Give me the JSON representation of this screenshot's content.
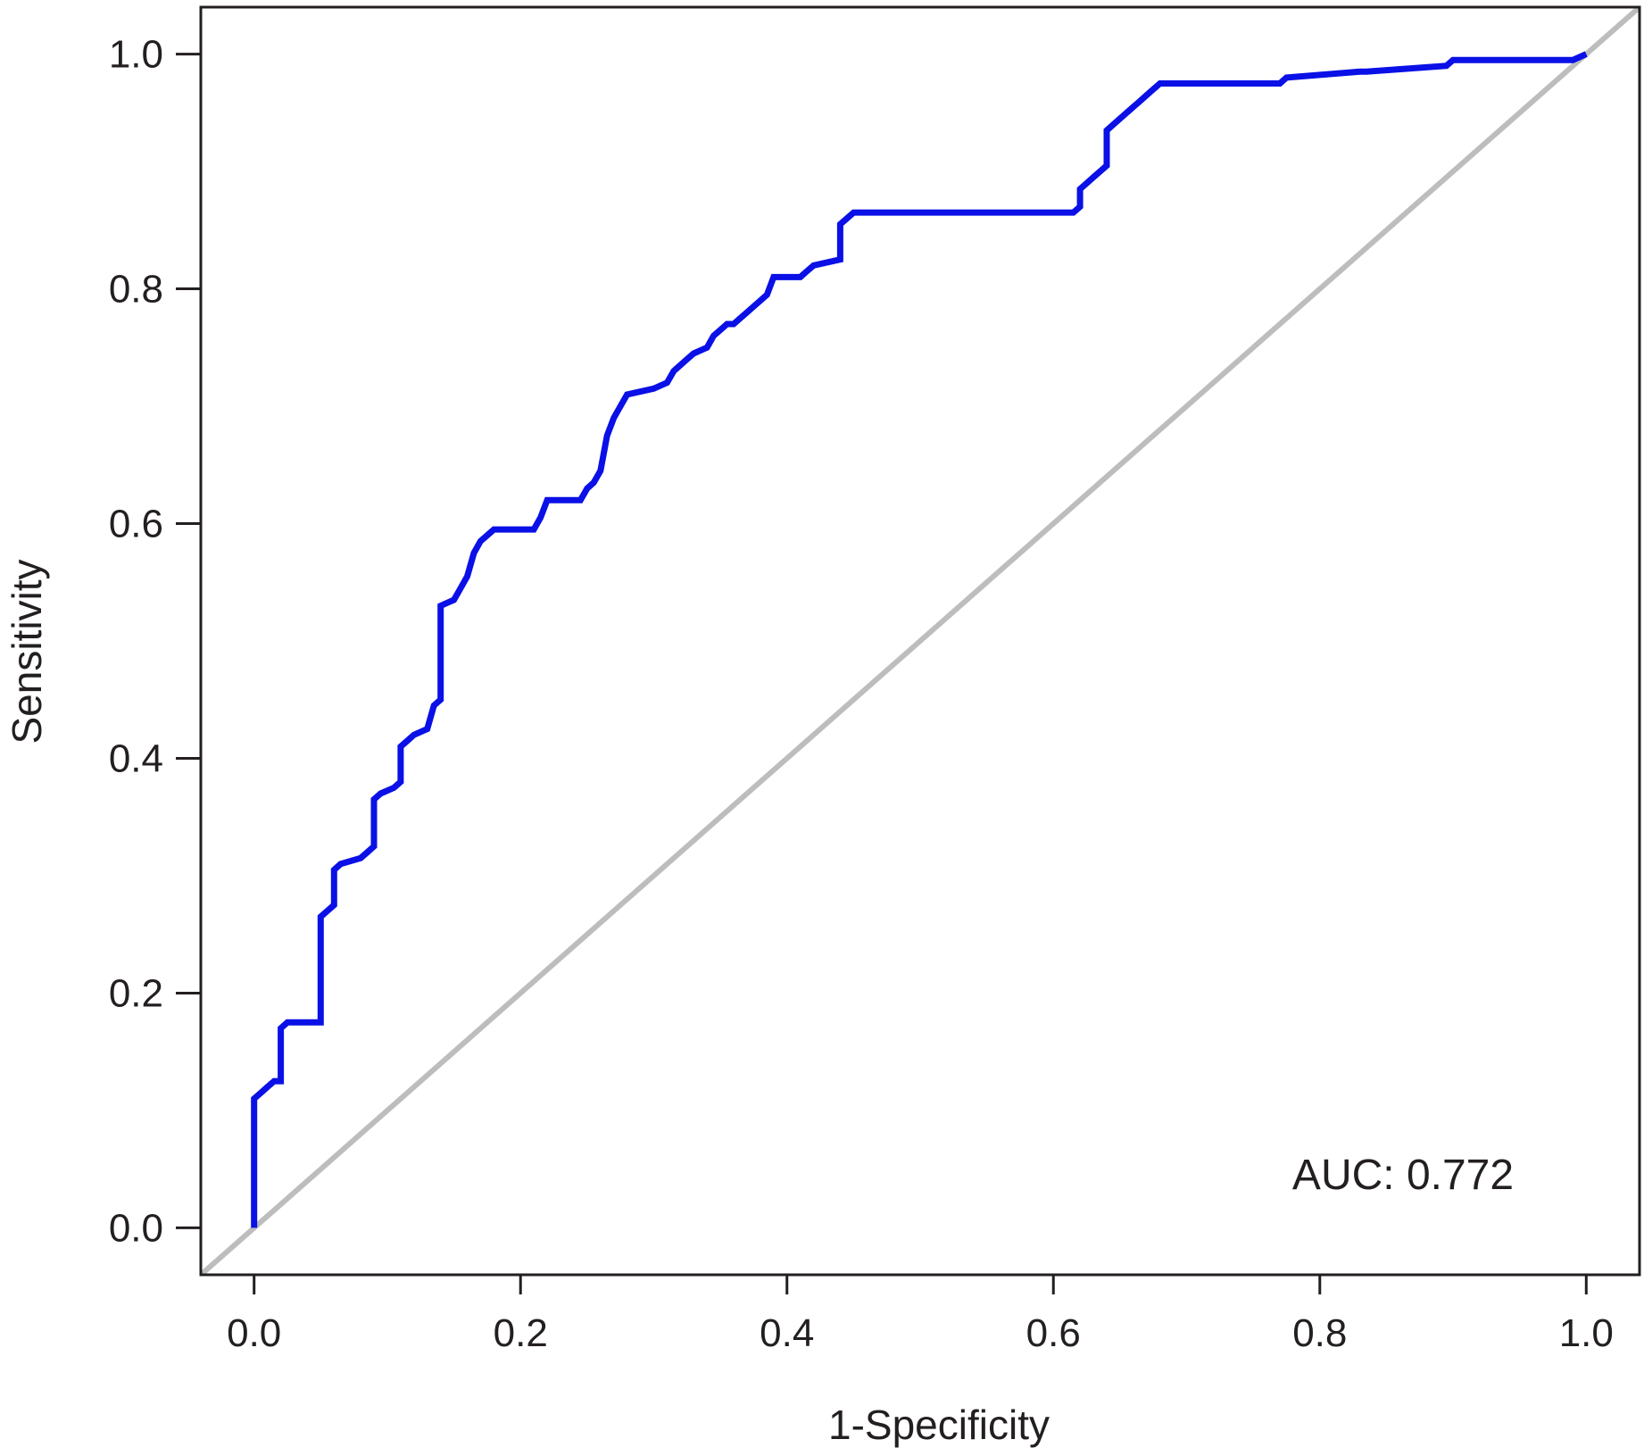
{
  "chart_data": {
    "type": "line",
    "xlabel": "1-Specificity",
    "ylabel": "Sensitivity",
    "xlim": [
      -0.04,
      1.04
    ],
    "ylim": [
      -0.04,
      1.04
    ],
    "x_ticks": [
      "0.0",
      "0.2",
      "0.4",
      "0.6",
      "0.8",
      "1.0"
    ],
    "y_ticks": [
      "0.0",
      "0.2",
      "0.4",
      "0.6",
      "0.8",
      "1.0"
    ],
    "annotation": "AUC: 0.772",
    "grid": false,
    "colors": {
      "roc": "#0a10e6",
      "reference": "#bdbdbd",
      "axes": "#231f20"
    },
    "series": [
      {
        "role": "roc",
        "x": [
          0.0,
          0.0,
          0.005,
          0.01,
          0.015,
          0.02,
          0.02,
          0.025,
          0.05,
          0.05,
          0.055,
          0.06,
          0.06,
          0.065,
          0.08,
          0.085,
          0.09,
          0.09,
          0.095,
          0.105,
          0.11,
          0.11,
          0.115,
          0.12,
          0.13,
          0.135,
          0.14,
          0.14,
          0.15,
          0.155,
          0.16,
          0.165,
          0.17,
          0.175,
          0.18,
          0.21,
          0.215,
          0.22,
          0.245,
          0.25,
          0.255,
          0.26,
          0.265,
          0.27,
          0.28,
          0.3,
          0.31,
          0.315,
          0.32,
          0.325,
          0.33,
          0.34,
          0.345,
          0.35,
          0.355,
          0.36,
          0.365,
          0.37,
          0.375,
          0.38,
          0.385,
          0.39,
          0.41,
          0.415,
          0.42,
          0.44,
          0.44,
          0.445,
          0.45,
          0.615,
          0.62,
          0.62,
          0.625,
          0.63,
          0.64,
          0.64,
          0.645,
          0.65,
          0.655,
          0.66,
          0.665,
          0.67,
          0.675,
          0.68,
          0.69,
          0.77,
          0.775,
          0.83,
          0.835,
          0.895,
          0.9,
          0.99,
          1.0
        ],
        "y": [
          0.0,
          0.11,
          0.115,
          0.12,
          0.125,
          0.125,
          0.17,
          0.175,
          0.175,
          0.265,
          0.27,
          0.275,
          0.305,
          0.31,
          0.315,
          0.32,
          0.325,
          0.365,
          0.37,
          0.375,
          0.38,
          0.41,
          0.415,
          0.42,
          0.425,
          0.445,
          0.45,
          0.53,
          0.535,
          0.545,
          0.555,
          0.575,
          0.585,
          0.59,
          0.595,
          0.595,
          0.605,
          0.62,
          0.62,
          0.63,
          0.635,
          0.645,
          0.675,
          0.69,
          0.71,
          0.715,
          0.72,
          0.73,
          0.735,
          0.74,
          0.745,
          0.75,
          0.76,
          0.765,
          0.77,
          0.77,
          0.775,
          0.78,
          0.785,
          0.79,
          0.795,
          0.81,
          0.81,
          0.815,
          0.82,
          0.825,
          0.855,
          0.86,
          0.865,
          0.865,
          0.87,
          0.885,
          0.89,
          0.895,
          0.905,
          0.935,
          0.94,
          0.945,
          0.95,
          0.955,
          0.96,
          0.965,
          0.97,
          0.975,
          0.975,
          0.975,
          0.98,
          0.985,
          0.985,
          0.99,
          0.995,
          0.995,
          1.0
        ]
      },
      {
        "role": "reference",
        "x": [
          -0.04,
          1.04
        ],
        "y": [
          -0.04,
          1.04
        ]
      }
    ]
  }
}
